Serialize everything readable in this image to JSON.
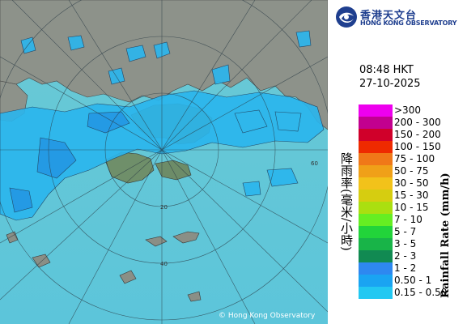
{
  "header": {
    "logo_name_cn": "香港天文台",
    "logo_name_en": "HONG KONG OBSERVATORY"
  },
  "timestamp": {
    "time": "08:48 HKT",
    "date": "27-10-2025"
  },
  "legend": {
    "title_cn": "降雨率(毫米/小時)",
    "title_en": "Rainfall Rate (mm/h)",
    "items": [
      {
        "label": ">300",
        "color": "#ee00ee"
      },
      {
        "label": "200 - 300",
        "color": "#c2008f"
      },
      {
        "label": "150 - 200",
        "color": "#d0002a"
      },
      {
        "label": "100 - 150",
        "color": "#ee2a00"
      },
      {
        "label": "75 - 100",
        "color": "#f07818"
      },
      {
        "label": "50 - 75",
        "color": "#f0a018"
      },
      {
        "label": "30 - 50",
        "color": "#f2c21a"
      },
      {
        "label": "15 - 30",
        "color": "#d6cd10"
      },
      {
        "label": "10 - 15",
        "color": "#aadf10"
      },
      {
        "label": "7 - 10",
        "color": "#66ee22"
      },
      {
        "label": "5 - 7",
        "color": "#22d43a"
      },
      {
        "label": "3 - 5",
        "color": "#18b448"
      },
      {
        "label": "2 - 3",
        "color": "#118a52"
      },
      {
        "label": "1 - 2",
        "color": "#2e88f0"
      },
      {
        "label": "0.50 - 1",
        "color": "#1aa4f2"
      },
      {
        "label": "0.15 - 0.50",
        "color": "#22c8f2"
      }
    ]
  },
  "map": {
    "range_ring_labels": [
      "20",
      "40",
      "60"
    ],
    "copyright": "© Hong Kong Observatory",
    "colors": {
      "sea": "#66c9d6",
      "land": "#8a8f86",
      "rain_light": "#2ab6ee",
      "rain_moderate": "#1e96e6"
    }
  }
}
